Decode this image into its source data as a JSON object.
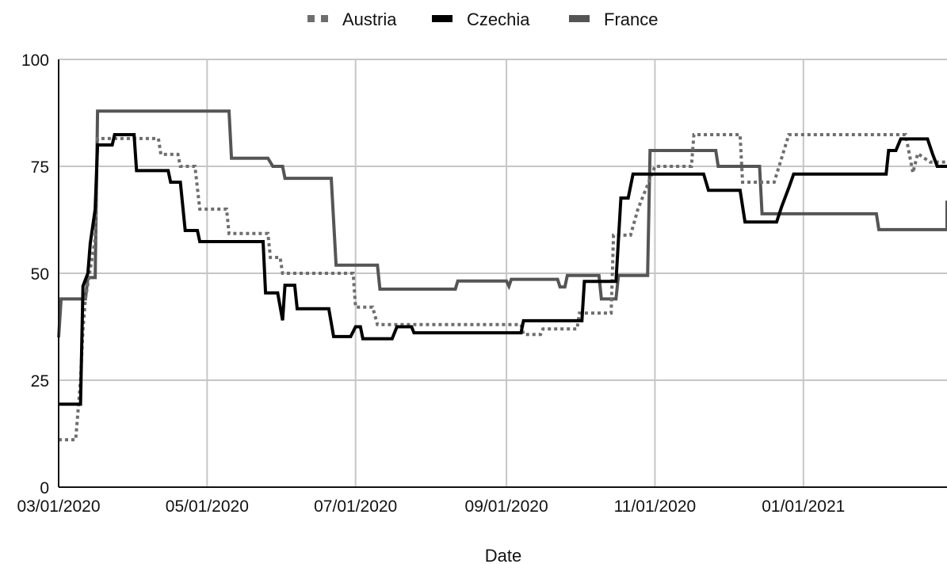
{
  "chart_data": {
    "type": "line",
    "title": "",
    "xlabel": "Date",
    "ylabel": "",
    "ylim": [
      0,
      100
    ],
    "y_ticks": [
      "0",
      "25",
      "50",
      "75",
      "100"
    ],
    "x_range": [
      "2020-03-01",
      "2021-03-01"
    ],
    "x_ticks": [
      {
        "date": "2020-03-01",
        "label": "03/01/2020"
      },
      {
        "date": "2020-05-01",
        "label": "05/01/2020"
      },
      {
        "date": "2020-07-01",
        "label": "07/01/2020"
      },
      {
        "date": "2020-09-01",
        "label": "09/01/2020"
      },
      {
        "date": "2020-11-01",
        "label": "11/01/2020"
      },
      {
        "date": "2021-01-01",
        "label": "01/01/2021"
      }
    ],
    "grid": true,
    "legend_position": "top",
    "step": true,
    "series": [
      {
        "name": "Austria",
        "color": "#6e6e6e",
        "dash": "dotted",
        "points": [
          [
            "2020-03-01",
            11.1
          ],
          [
            "2020-03-08",
            11.1
          ],
          [
            "2020-03-10",
            25
          ],
          [
            "2020-03-11",
            37
          ],
          [
            "2020-03-12",
            44
          ],
          [
            "2020-03-16",
            58
          ],
          [
            "2020-03-17",
            81.5
          ],
          [
            "2020-04-11",
            81.5
          ],
          [
            "2020-04-12",
            77.8
          ],
          [
            "2020-04-19",
            77.8
          ],
          [
            "2020-04-20",
            75
          ],
          [
            "2020-04-26",
            75
          ],
          [
            "2020-04-28",
            65
          ],
          [
            "2020-05-09",
            65
          ],
          [
            "2020-05-10",
            59.3
          ],
          [
            "2020-05-26",
            59.3
          ],
          [
            "2020-05-27",
            53.7
          ],
          [
            "2020-05-31",
            53.7
          ],
          [
            "2020-06-01",
            50
          ],
          [
            "2020-06-30",
            50
          ],
          [
            "2020-07-01",
            42.1
          ],
          [
            "2020-07-08",
            42.1
          ],
          [
            "2020-07-10",
            38
          ],
          [
            "2020-09-07",
            38
          ],
          [
            "2020-09-08",
            35.7
          ],
          [
            "2020-09-15",
            35.7
          ],
          [
            "2020-09-16",
            37
          ],
          [
            "2020-09-30",
            37
          ],
          [
            "2020-10-01",
            40.7
          ],
          [
            "2020-10-14",
            40.7
          ],
          [
            "2020-10-15",
            58.9
          ],
          [
            "2020-10-22",
            58.9
          ],
          [
            "2020-10-25",
            65
          ],
          [
            "2020-11-01",
            75
          ],
          [
            "2020-11-16",
            75
          ],
          [
            "2020-11-17",
            82.4
          ],
          [
            "2020-12-06",
            82.4
          ],
          [
            "2020-12-07",
            71.3
          ],
          [
            "2020-12-20",
            71.3
          ],
          [
            "2020-12-26",
            82.4
          ],
          [
            "2021-02-12",
            82.4
          ],
          [
            "2021-02-15",
            73.5
          ],
          [
            "2021-02-17",
            78
          ],
          [
            "2021-02-22",
            76
          ],
          [
            "2021-03-01",
            76
          ]
        ]
      },
      {
        "name": "Czechia",
        "color": "#000000",
        "dash": "solid",
        "points": [
          [
            "2020-03-01",
            19.4
          ],
          [
            "2020-03-10",
            19.4
          ],
          [
            "2020-03-11",
            47
          ],
          [
            "2020-03-13",
            50
          ],
          [
            "2020-03-14",
            57
          ],
          [
            "2020-03-16",
            65
          ],
          [
            "2020-03-17",
            80
          ],
          [
            "2020-03-23",
            80
          ],
          [
            "2020-03-24",
            82.4
          ],
          [
            "2020-04-01",
            82.4
          ],
          [
            "2020-04-02",
            74
          ],
          [
            "2020-04-15",
            74
          ],
          [
            "2020-04-16",
            71.3
          ],
          [
            "2020-04-20",
            71.3
          ],
          [
            "2020-04-22",
            60
          ],
          [
            "2020-04-27",
            60
          ],
          [
            "2020-04-28",
            57.4
          ],
          [
            "2020-05-24",
            57.4
          ],
          [
            "2020-05-25",
            45.4
          ],
          [
            "2020-05-30",
            45.4
          ],
          [
            "2020-06-01",
            39
          ],
          [
            "2020-06-02",
            47.2
          ],
          [
            "2020-06-06",
            47.2
          ],
          [
            "2020-06-07",
            41.7
          ],
          [
            "2020-06-20",
            41.7
          ],
          [
            "2020-06-22",
            35.2
          ],
          [
            "2020-06-29",
            35.2
          ],
          [
            "2020-07-01",
            37.5
          ],
          [
            "2020-07-03",
            37.5
          ],
          [
            "2020-07-04",
            34.7
          ],
          [
            "2020-07-16",
            34.7
          ],
          [
            "2020-07-18",
            37.5
          ],
          [
            "2020-07-24",
            37.5
          ],
          [
            "2020-07-25",
            36.1
          ],
          [
            "2020-09-07",
            36.1
          ],
          [
            "2020-09-08",
            38.9
          ],
          [
            "2020-10-02",
            38.9
          ],
          [
            "2020-10-03",
            48.1
          ],
          [
            "2020-10-16",
            48.1
          ],
          [
            "2020-10-18",
            67.6
          ],
          [
            "2020-10-21",
            67.6
          ],
          [
            "2020-10-23",
            73.2
          ],
          [
            "2020-11-21",
            73.2
          ],
          [
            "2020-11-23",
            69.4
          ],
          [
            "2020-12-06",
            69.4
          ],
          [
            "2020-12-08",
            62
          ],
          [
            "2020-12-21",
            62
          ],
          [
            "2020-12-23",
            65.5
          ],
          [
            "2020-12-26",
            70
          ],
          [
            "2020-12-28",
            73.2
          ],
          [
            "2021-02-04",
            73.2
          ],
          [
            "2021-02-05",
            78.7
          ],
          [
            "2021-02-08",
            78.7
          ],
          [
            "2021-02-10",
            81.4
          ],
          [
            "2021-02-21",
            81.4
          ],
          [
            "2021-02-23",
            78
          ],
          [
            "2021-02-25",
            75
          ],
          [
            "2021-03-01",
            75
          ]
        ]
      },
      {
        "name": "France",
        "color": "#555555",
        "dash": "solid",
        "points": [
          [
            "2020-03-01",
            35
          ],
          [
            "2020-03-02",
            44
          ],
          [
            "2020-03-12",
            44
          ],
          [
            "2020-03-13",
            49
          ],
          [
            "2020-03-16",
            49
          ],
          [
            "2020-03-17",
            87.9
          ],
          [
            "2020-05-10",
            87.9
          ],
          [
            "2020-05-11",
            76.9
          ],
          [
            "2020-05-26",
            76.9
          ],
          [
            "2020-05-28",
            75
          ],
          [
            "2020-06-01",
            75
          ],
          [
            "2020-06-02",
            72.2
          ],
          [
            "2020-06-21",
            72.2
          ],
          [
            "2020-06-23",
            51.9
          ],
          [
            "2020-07-10",
            51.9
          ],
          [
            "2020-07-11",
            46.3
          ],
          [
            "2020-08-11",
            46.3
          ],
          [
            "2020-08-12",
            48.2
          ],
          [
            "2020-09-01",
            48.2
          ],
          [
            "2020-09-02",
            47
          ],
          [
            "2020-09-03",
            48.6
          ],
          [
            "2020-09-22",
            48.6
          ],
          [
            "2020-09-23",
            46.8
          ],
          [
            "2020-09-25",
            46.8
          ],
          [
            "2020-09-26",
            49.5
          ],
          [
            "2020-10-09",
            49.5
          ],
          [
            "2020-10-10",
            44
          ],
          [
            "2020-10-16",
            44
          ],
          [
            "2020-10-17",
            49.5
          ],
          [
            "2020-10-29",
            49.5
          ],
          [
            "2020-10-30",
            78.7
          ],
          [
            "2020-11-26",
            78.7
          ],
          [
            "2020-11-27",
            75
          ],
          [
            "2020-12-14",
            75
          ],
          [
            "2020-12-15",
            63.9
          ],
          [
            "2021-01-31",
            63.9
          ],
          [
            "2021-02-01",
            60.2
          ],
          [
            "2021-03-01",
            60.2
          ],
          [
            "2021-03-01",
            67
          ]
        ]
      }
    ]
  }
}
